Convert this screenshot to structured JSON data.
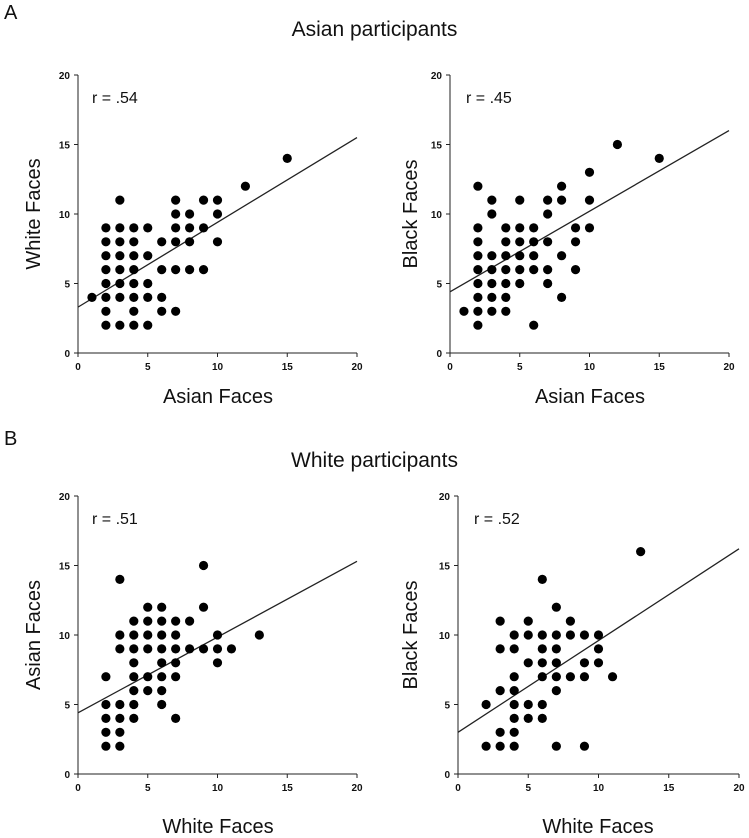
{
  "panel_a": {
    "letter": "A",
    "title": "Asian participants"
  },
  "panel_b": {
    "letter": "B",
    "title": "White participants"
  },
  "chart_data": [
    {
      "type": "scatter",
      "group": "Asian participants",
      "xlabel": "Asian Faces",
      "ylabel": "White Faces",
      "xlim": [
        0,
        20
      ],
      "ylim": [
        0,
        20
      ],
      "xticks": [
        "0",
        "5",
        "10",
        "15",
        "20"
      ],
      "yticks": [
        "0",
        "5",
        "10",
        "15",
        "20"
      ],
      "annotation": "r = .54",
      "fit": {
        "intercept": 3.3,
        "slope": 0.61
      },
      "points": [
        [
          1,
          4
        ],
        [
          2,
          2
        ],
        [
          2,
          3
        ],
        [
          2,
          4
        ],
        [
          2,
          5
        ],
        [
          2,
          6
        ],
        [
          2,
          7
        ],
        [
          2,
          8
        ],
        [
          2,
          9
        ],
        [
          3,
          2
        ],
        [
          3,
          4
        ],
        [
          3,
          5
        ],
        [
          3,
          6
        ],
        [
          3,
          7
        ],
        [
          3,
          8
        ],
        [
          3,
          9
        ],
        [
          3,
          11
        ],
        [
          4,
          2
        ],
        [
          4,
          3
        ],
        [
          4,
          4
        ],
        [
          4,
          5
        ],
        [
          4,
          6
        ],
        [
          4,
          7
        ],
        [
          4,
          8
        ],
        [
          4,
          9
        ],
        [
          5,
          2
        ],
        [
          5,
          4
        ],
        [
          5,
          5
        ],
        [
          5,
          7
        ],
        [
          5,
          9
        ],
        [
          6,
          3
        ],
        [
          6,
          4
        ],
        [
          6,
          6
        ],
        [
          6,
          8
        ],
        [
          7,
          3
        ],
        [
          7,
          6
        ],
        [
          7,
          8
        ],
        [
          7,
          9
        ],
        [
          7,
          10
        ],
        [
          7,
          11
        ],
        [
          8,
          6
        ],
        [
          8,
          8
        ],
        [
          8,
          9
        ],
        [
          8,
          10
        ],
        [
          9,
          6
        ],
        [
          9,
          9
        ],
        [
          9,
          11
        ],
        [
          10,
          8
        ],
        [
          10,
          10
        ],
        [
          10,
          11
        ],
        [
          12,
          12
        ],
        [
          15,
          14
        ]
      ]
    },
    {
      "type": "scatter",
      "group": "Asian participants",
      "xlabel": "Asian Faces",
      "ylabel": "Black Faces",
      "xlim": [
        0,
        20
      ],
      "ylim": [
        0,
        20
      ],
      "xticks": [
        "0",
        "5",
        "10",
        "15",
        "20"
      ],
      "yticks": [
        "0",
        "5",
        "10",
        "15",
        "20"
      ],
      "annotation": "r = .45",
      "fit": {
        "intercept": 4.4,
        "slope": 0.58
      },
      "points": [
        [
          1,
          3
        ],
        [
          2,
          2
        ],
        [
          2,
          3
        ],
        [
          2,
          4
        ],
        [
          2,
          5
        ],
        [
          2,
          6
        ],
        [
          2,
          7
        ],
        [
          2,
          8
        ],
        [
          2,
          9
        ],
        [
          2,
          12
        ],
        [
          3,
          3
        ],
        [
          3,
          4
        ],
        [
          3,
          5
        ],
        [
          3,
          6
        ],
        [
          3,
          7
        ],
        [
          3,
          10
        ],
        [
          3,
          11
        ],
        [
          4,
          3
        ],
        [
          4,
          4
        ],
        [
          4,
          5
        ],
        [
          4,
          6
        ],
        [
          4,
          7
        ],
        [
          4,
          8
        ],
        [
          4,
          9
        ],
        [
          5,
          5
        ],
        [
          5,
          6
        ],
        [
          5,
          7
        ],
        [
          5,
          8
        ],
        [
          5,
          9
        ],
        [
          5,
          11
        ],
        [
          6,
          2
        ],
        [
          6,
          6
        ],
        [
          6,
          7
        ],
        [
          6,
          8
        ],
        [
          6,
          9
        ],
        [
          7,
          5
        ],
        [
          7,
          6
        ],
        [
          7,
          8
        ],
        [
          7,
          10
        ],
        [
          7,
          11
        ],
        [
          8,
          4
        ],
        [
          8,
          7
        ],
        [
          8,
          11
        ],
        [
          8,
          12
        ],
        [
          9,
          6
        ],
        [
          9,
          8
        ],
        [
          9,
          9
        ],
        [
          10,
          9
        ],
        [
          10,
          11
        ],
        [
          10,
          13
        ],
        [
          12,
          15
        ],
        [
          15,
          14
        ]
      ]
    },
    {
      "type": "scatter",
      "group": "White participants",
      "xlabel": "White Faces",
      "ylabel": "Asian Faces",
      "xlim": [
        0,
        20
      ],
      "ylim": [
        0,
        20
      ],
      "xticks": [
        "0",
        "5",
        "10",
        "15",
        "20"
      ],
      "yticks": [
        "0",
        "5",
        "10",
        "15",
        "20"
      ],
      "annotation": "r = .51",
      "fit": {
        "intercept": 4.4,
        "slope": 0.545
      },
      "points": [
        [
          2,
          2
        ],
        [
          2,
          3
        ],
        [
          2,
          4
        ],
        [
          2,
          5
        ],
        [
          2,
          7
        ],
        [
          3,
          2
        ],
        [
          3,
          3
        ],
        [
          3,
          4
        ],
        [
          3,
          5
        ],
        [
          3,
          9
        ],
        [
          3,
          10
        ],
        [
          3,
          14
        ],
        [
          4,
          4
        ],
        [
          4,
          5
        ],
        [
          4,
          6
        ],
        [
          4,
          7
        ],
        [
          4,
          8
        ],
        [
          4,
          9
        ],
        [
          4,
          10
        ],
        [
          4,
          11
        ],
        [
          5,
          6
        ],
        [
          5,
          7
        ],
        [
          5,
          9
        ],
        [
          5,
          10
        ],
        [
          5,
          11
        ],
        [
          5,
          12
        ],
        [
          6,
          5
        ],
        [
          6,
          6
        ],
        [
          6,
          7
        ],
        [
          6,
          8
        ],
        [
          6,
          9
        ],
        [
          6,
          10
        ],
        [
          6,
          11
        ],
        [
          6,
          12
        ],
        [
          7,
          4
        ],
        [
          7,
          7
        ],
        [
          7,
          8
        ],
        [
          7,
          9
        ],
        [
          7,
          10
        ],
        [
          7,
          11
        ],
        [
          8,
          9
        ],
        [
          8,
          11
        ],
        [
          9,
          9
        ],
        [
          9,
          12
        ],
        [
          9,
          15
        ],
        [
          10,
          8
        ],
        [
          10,
          9
        ],
        [
          10,
          10
        ],
        [
          11,
          9
        ],
        [
          13,
          10
        ]
      ]
    },
    {
      "type": "scatter",
      "group": "White participants",
      "xlabel": "White Faces",
      "ylabel": "Black Faces",
      "xlim": [
        0,
        20
      ],
      "ylim": [
        0,
        20
      ],
      "xticks": [
        "0",
        "5",
        "10",
        "15",
        "20"
      ],
      "yticks": [
        "0",
        "5",
        "10",
        "15",
        "20"
      ],
      "annotation": "r = .52",
      "fit": {
        "intercept": 3.0,
        "slope": 0.66
      },
      "points": [
        [
          2,
          2
        ],
        [
          2,
          5
        ],
        [
          3,
          2
        ],
        [
          3,
          3
        ],
        [
          3,
          6
        ],
        [
          3,
          9
        ],
        [
          3,
          11
        ],
        [
          4,
          2
        ],
        [
          4,
          3
        ],
        [
          4,
          4
        ],
        [
          4,
          5
        ],
        [
          4,
          6
        ],
        [
          4,
          7
        ],
        [
          4,
          9
        ],
        [
          4,
          10
        ],
        [
          5,
          4
        ],
        [
          5,
          5
        ],
        [
          5,
          8
        ],
        [
          5,
          10
        ],
        [
          5,
          11
        ],
        [
          6,
          4
        ],
        [
          6,
          5
        ],
        [
          6,
          7
        ],
        [
          6,
          8
        ],
        [
          6,
          9
        ],
        [
          6,
          10
        ],
        [
          6,
          14
        ],
        [
          7,
          2
        ],
        [
          7,
          6
        ],
        [
          7,
          7
        ],
        [
          7,
          8
        ],
        [
          7,
          9
        ],
        [
          7,
          10
        ],
        [
          7,
          12
        ],
        [
          8,
          7
        ],
        [
          8,
          10
        ],
        [
          8,
          11
        ],
        [
          9,
          2
        ],
        [
          9,
          7
        ],
        [
          9,
          8
        ],
        [
          9,
          10
        ],
        [
          10,
          8
        ],
        [
          10,
          9
        ],
        [
          10,
          10
        ],
        [
          11,
          7
        ],
        [
          13,
          16
        ]
      ]
    }
  ]
}
